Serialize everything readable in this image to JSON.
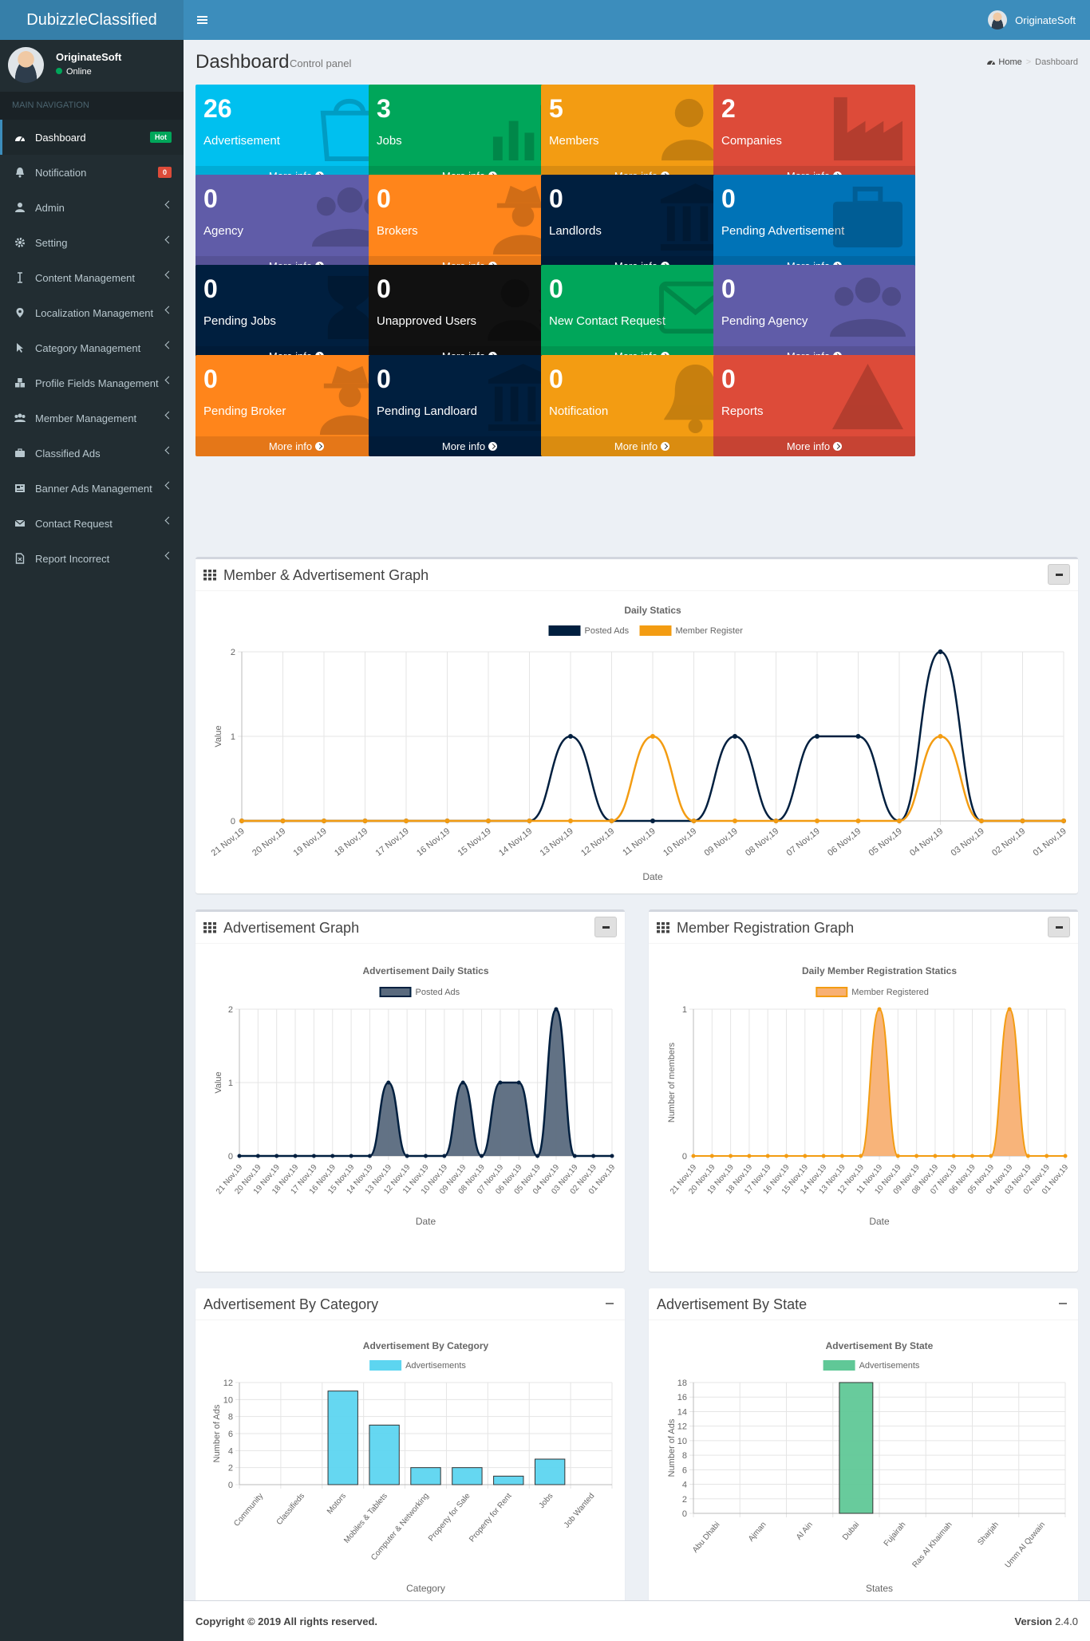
{
  "app": {
    "brand": "DubizzleClassified",
    "user_name": "OriginateSoft"
  },
  "sidebar": {
    "user_name": "OriginateSoft",
    "status": "Online",
    "header": "MAIN NAVIGATION",
    "items": [
      {
        "label": "Dashboard",
        "icon": "dashboard-icon",
        "badge": "Hot",
        "badge_color": "#00a65a",
        "active": true
      },
      {
        "label": "Notification",
        "icon": "bell-icon",
        "badge": "0",
        "badge_color": "#dd4b39"
      },
      {
        "label": "Admin",
        "icon": "user-icon",
        "arrow": true
      },
      {
        "label": "Setting",
        "icon": "gear-icon",
        "arrow": true
      },
      {
        "label": "Content Management",
        "icon": "text-cursor-icon",
        "arrow": true
      },
      {
        "label": "Localization Management",
        "icon": "map-marker-icon",
        "arrow": true
      },
      {
        "label": "Category Management",
        "icon": "pointer-icon",
        "arrow": true
      },
      {
        "label": "Profile Fields Management",
        "icon": "cubes-icon",
        "arrow": true
      },
      {
        "label": "Member Management",
        "icon": "users-icon",
        "arrow": true
      },
      {
        "label": "Classified Ads",
        "icon": "briefcase-icon",
        "arrow": true
      },
      {
        "label": "Banner Ads Management",
        "icon": "newspaper-icon",
        "arrow": true
      },
      {
        "label": "Contact Request",
        "icon": "envelope-icon",
        "arrow": true
      },
      {
        "label": "Report Incorrect",
        "icon": "file-icon",
        "arrow": true
      }
    ]
  },
  "page": {
    "title": "Dashboard",
    "subtitle": "Control panel",
    "breadcrumb_home": "Home",
    "breadcrumb_current": "Dashboard"
  },
  "stat_boxes": [
    {
      "value": "26",
      "label": "Advertisement",
      "color": "#00c0ef",
      "icon": "shopping-bag-icon"
    },
    {
      "value": "3",
      "label": "Jobs",
      "color": "#00a65a",
      "icon": "bar-chart-icon"
    },
    {
      "value": "5",
      "label": "Members",
      "color": "#f39c12",
      "icon": "user-plus-icon"
    },
    {
      "value": "2",
      "label": "Companies",
      "color": "#dd4b39",
      "icon": "industry-icon"
    },
    {
      "value": "0",
      "label": "Agency",
      "color": "#605ca8",
      "icon": "users-icon"
    },
    {
      "value": "0",
      "label": "Brokers",
      "color": "#ff851b",
      "icon": "user-secret-icon"
    },
    {
      "value": "0",
      "label": "Landlords",
      "color": "#001f3f",
      "icon": "institution-icon"
    },
    {
      "value": "0",
      "label": "Pending Advertisement",
      "color": "#0073b7",
      "icon": "briefcase-icon"
    },
    {
      "value": "0",
      "label": "Pending Jobs",
      "color": "#001f3f",
      "icon": "hourglass-icon"
    },
    {
      "value": "0",
      "label": "Unapproved Users",
      "color": "#111111",
      "icon": "user-times-icon"
    },
    {
      "value": "0",
      "label": "New Contact Request",
      "color": "#00a65a",
      "icon": "envelope-icon"
    },
    {
      "value": "0",
      "label": "Pending Agency",
      "color": "#605ca8",
      "icon": "users-icon"
    },
    {
      "value": "0",
      "label": "Pending Broker",
      "color": "#ff851b",
      "icon": "user-secret-icon"
    },
    {
      "value": "0",
      "label": "Pending Landloard",
      "color": "#001f3f",
      "icon": "institution-icon"
    },
    {
      "value": "0",
      "label": "Notification",
      "color": "#f39c12",
      "icon": "bell-icon"
    },
    {
      "value": "0",
      "label": "Reports",
      "color": "#dd4b39",
      "icon": "warning-icon"
    }
  ],
  "more_info_label": "More info",
  "boxes": {
    "member_ad_graph": "Member & Advertisement Graph",
    "ad_graph": "Advertisement Graph",
    "member_graph": "Member Registration Graph",
    "ad_by_category": "Advertisement By Category",
    "ad_by_state": "Advertisement By State"
  },
  "chart_data": [
    {
      "type": "line",
      "title": "Daily Statics",
      "xlabel": "Date",
      "ylabel": "Value",
      "ylim": [
        0,
        2
      ],
      "legend": "top",
      "x": [
        "21 Nov,19",
        "20 Nov,19",
        "19 Nov,19",
        "18 Nov,19",
        "17 Nov,19",
        "16 Nov,19",
        "15 Nov,19",
        "14 Nov,19",
        "13 Nov,19",
        "12 Nov,19",
        "11 Nov,19",
        "10 Nov,19",
        "09 Nov,19",
        "08 Nov,19",
        "07 Nov,19",
        "06 Nov,19",
        "05 Nov,19",
        "04 Nov,19",
        "03 Nov,19",
        "02 Nov,19",
        "01 Nov,19"
      ],
      "series": [
        {
          "name": "Posted Ads",
          "color": "#001f3f",
          "values": [
            0,
            0,
            0,
            0,
            0,
            0,
            0,
            0,
            1,
            0,
            0,
            0,
            1,
            0,
            1,
            1,
            0,
            2,
            0,
            0,
            0
          ]
        },
        {
          "name": "Member Register",
          "color": "#f39c12",
          "values": [
            0,
            0,
            0,
            0,
            0,
            0,
            0,
            0,
            0,
            0,
            1,
            0,
            0,
            0,
            0,
            0,
            0,
            1,
            0,
            0,
            0
          ]
        }
      ]
    },
    {
      "type": "area",
      "title": "Advertisement Daily Statics",
      "xlabel": "Date",
      "ylabel": "Value",
      "ylim": [
        0,
        2
      ],
      "legend": "top",
      "x": [
        "21 Nov,19",
        "20 Nov,19",
        "19 Nov,19",
        "18 Nov,19",
        "17 Nov,19",
        "16 Nov,19",
        "15 Nov,19",
        "14 Nov,19",
        "13 Nov,19",
        "12 Nov,19",
        "11 Nov,19",
        "10 Nov,19",
        "09 Nov,19",
        "08 Nov,19",
        "07 Nov,19",
        "06 Nov,19",
        "05 Nov,19",
        "04 Nov,19",
        "03 Nov,19",
        "02 Nov,19",
        "01 Nov,19"
      ],
      "series": [
        {
          "name": "Posted Ads",
          "color": "#001f3f",
          "fill": "#5a6a7e",
          "values": [
            0,
            0,
            0,
            0,
            0,
            0,
            0,
            0,
            1,
            0,
            0,
            0,
            1,
            0,
            1,
            1,
            0,
            2,
            0,
            0,
            0
          ]
        }
      ]
    },
    {
      "type": "area",
      "title": "Daily Member Registration Statics",
      "xlabel": "Date",
      "ylabel": "Number of members",
      "ylim": [
        0,
        1
      ],
      "legend": "top",
      "x": [
        "21 Nov,19",
        "20 Nov,19",
        "19 Nov,19",
        "18 Nov,19",
        "17 Nov,19",
        "16 Nov,19",
        "15 Nov,19",
        "14 Nov,19",
        "13 Nov,19",
        "12 Nov,19",
        "11 Nov,19",
        "10 Nov,19",
        "09 Nov,19",
        "08 Nov,19",
        "07 Nov,19",
        "06 Nov,19",
        "05 Nov,19",
        "04 Nov,19",
        "03 Nov,19",
        "02 Nov,19",
        "01 Nov,19"
      ],
      "series": [
        {
          "name": "Member Registered",
          "color": "#f39c12",
          "fill": "#f8b073",
          "values": [
            0,
            0,
            0,
            0,
            0,
            0,
            0,
            0,
            0,
            0,
            1,
            0,
            0,
            0,
            0,
            0,
            0,
            1,
            0,
            0,
            0
          ]
        }
      ]
    },
    {
      "type": "bar",
      "title": "Advertisement By Category",
      "xlabel": "Category",
      "ylabel": "Number of Ads",
      "ylim": [
        0,
        12
      ],
      "legend": "top",
      "categories": [
        "Community",
        "Classifieds",
        "Motors",
        "Mobiles & Tablets",
        "Computer & Networking",
        "Property for Sale",
        "Property for Rent",
        "Jobs",
        "Job Wanted"
      ],
      "series": [
        {
          "name": "Advertisements",
          "color": "#5dd5f0",
          "values": [
            0,
            0,
            11,
            7,
            2,
            2,
            1,
            3,
            0
          ]
        }
      ]
    },
    {
      "type": "bar",
      "title": "Advertisement By State",
      "xlabel": "States",
      "ylabel": "Number of Ads",
      "ylim": [
        0,
        18
      ],
      "legend": "top",
      "categories": [
        "Abu Dhabi",
        "Ajman",
        "Al Ain",
        "Dubai",
        "Fujairah",
        "Ras Al Khaimah",
        "Sharjah",
        "Umm Al Quwain"
      ],
      "series": [
        {
          "name": "Advertisements",
          "color": "#60c897",
          "values": [
            0,
            0,
            0,
            18,
            0,
            0,
            0,
            0
          ]
        }
      ]
    }
  ],
  "footer": {
    "copyright": "Copyright © 2019 All rights reserved.",
    "version_label": "Version",
    "version": "2.4.0"
  }
}
